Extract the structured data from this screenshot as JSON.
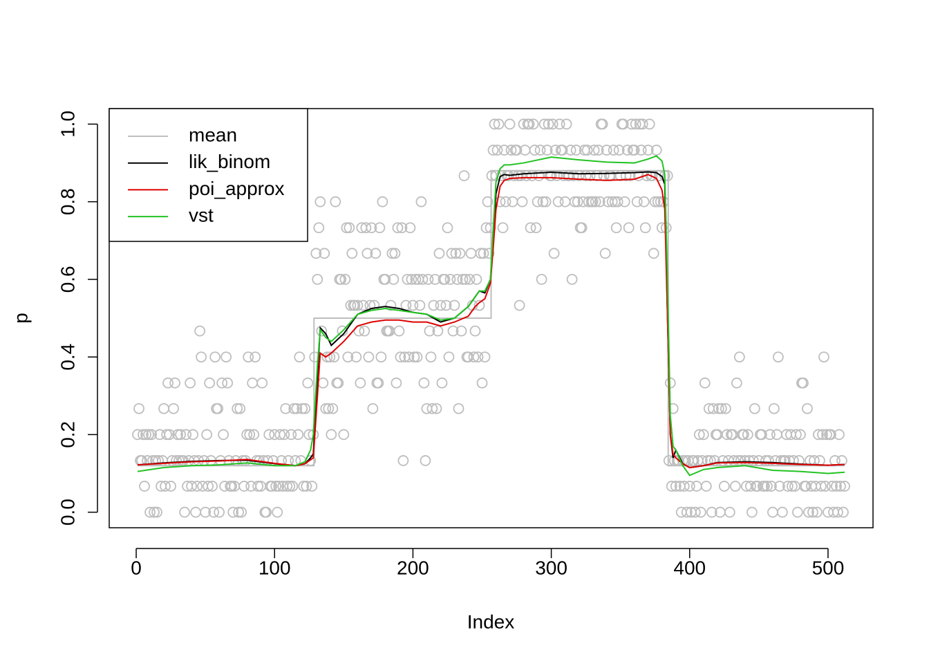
{
  "chart_data": {
    "type": "scatter",
    "x_label": "Index",
    "y_label": "p",
    "xlim": [
      -19.5,
      532.5
    ],
    "ylim": [
      -0.04,
      1.04
    ],
    "xticks": [
      0,
      100,
      200,
      300,
      400,
      500
    ],
    "yticks": [
      {
        "value": 0,
        "label": "0.0"
      },
      {
        "value": 0.2,
        "label": "0.2"
      },
      {
        "value": 0.4,
        "label": "0.4"
      },
      {
        "value": 0.6,
        "label": "0.6"
      },
      {
        "value": 0.8,
        "label": "0.8"
      },
      {
        "value": 1,
        "label": "1.0"
      }
    ],
    "legend": "topleft",
    "point_color": "#bebebe",
    "x": [
      1,
      2,
      3,
      4,
      5,
      6,
      7,
      8,
      9,
      10,
      11,
      12,
      13,
      14,
      15,
      16,
      17,
      18,
      19,
      20,
      21,
      22,
      23,
      24,
      25,
      26,
      27,
      28,
      29,
      30,
      31,
      32,
      33,
      34,
      35,
      36,
      37,
      38,
      39,
      40,
      41,
      42,
      43,
      44,
      45,
      46,
      47,
      48,
      49,
      50,
      51,
      52,
      53,
      54,
      55,
      56,
      57,
      58,
      59,
      60,
      61,
      62,
      63,
      64,
      65,
      66,
      67,
      68,
      69,
      70,
      71,
      72,
      73,
      74,
      75,
      76,
      77,
      78,
      79,
      80,
      81,
      82,
      83,
      84,
      85,
      86,
      87,
      88,
      89,
      90,
      91,
      92,
      93,
      94,
      95,
      96,
      97,
      98,
      99,
      100,
      101,
      102,
      103,
      104,
      105,
      106,
      107,
      108,
      109,
      110,
      111,
      112,
      113,
      114,
      115,
      116,
      117,
      118,
      119,
      120,
      121,
      122,
      123,
      124,
      125,
      126,
      127,
      128,
      129,
      130,
      131,
      132,
      133,
      134,
      135,
      136,
      137,
      138,
      139,
      140,
      141,
      142,
      143,
      144,
      145,
      146,
      147,
      148,
      149,
      150,
      151,
      152,
      153,
      154,
      155,
      156,
      157,
      158,
      159,
      160,
      161,
      162,
      163,
      164,
      165,
      166,
      167,
      168,
      169,
      170,
      171,
      172,
      173,
      174,
      175,
      176,
      177,
      178,
      179,
      180,
      181,
      182,
      183,
      184,
      185,
      186,
      187,
      188,
      189,
      190,
      191,
      192,
      193,
      194,
      195,
      196,
      197,
      198,
      199,
      200,
      201,
      202,
      203,
      204,
      205,
      206,
      207,
      208,
      209,
      210,
      211,
      212,
      213,
      214,
      215,
      216,
      217,
      218,
      219,
      220,
      221,
      222,
      223,
      224,
      225,
      226,
      227,
      228,
      229,
      230,
      231,
      232,
      233,
      234,
      235,
      236,
      237,
      238,
      239,
      240,
      241,
      242,
      243,
      244,
      245,
      246,
      247,
      248,
      249,
      250,
      251,
      252,
      253,
      254,
      255,
      256,
      257,
      258,
      259,
      260,
      261,
      262,
      263,
      264,
      265,
      266,
      267,
      268,
      269,
      270,
      271,
      272,
      273,
      274,
      275,
      276,
      277,
      278,
      279,
      280,
      281,
      282,
      283,
      284,
      285,
      286,
      287,
      288,
      289,
      290,
      291,
      292,
      293,
      294,
      295,
      296,
      297,
      298,
      299,
      300,
      301,
      302,
      303,
      304,
      305,
      306,
      307,
      308,
      309,
      310,
      311,
      312,
      313,
      314,
      315,
      316,
      317,
      318,
      319,
      320,
      321,
      322,
      323,
      324,
      325,
      326,
      327,
      328,
      329,
      330,
      331,
      332,
      333,
      334,
      335,
      336,
      337,
      338,
      339,
      340,
      341,
      342,
      343,
      344,
      345,
      346,
      347,
      348,
      349,
      350,
      351,
      352,
      353,
      354,
      355,
      356,
      357,
      358,
      359,
      360,
      361,
      362,
      363,
      364,
      365,
      366,
      367,
      368,
      369,
      370,
      371,
      372,
      373,
      374,
      375,
      376,
      377,
      378,
      379,
      380,
      381,
      382,
      383,
      384,
      385,
      386,
      387,
      388,
      389,
      390,
      391,
      392,
      393,
      394,
      395,
      396,
      397,
      398,
      399,
      400,
      401,
      402,
      403,
      404,
      405,
      406,
      407,
      408,
      409,
      410,
      411,
      412,
      413,
      414,
      415,
      416,
      417,
      418,
      419,
      420,
      421,
      422,
      423,
      424,
      425,
      426,
      427,
      428,
      429,
      430,
      431,
      432,
      433,
      434,
      435,
      436,
      437,
      438,
      439,
      440,
      441,
      442,
      443,
      444,
      445,
      446,
      447,
      448,
      449,
      450,
      451,
      452,
      453,
      454,
      455,
      456,
      457,
      458,
      459,
      460,
      461,
      462,
      463,
      464,
      465,
      466,
      467,
      468,
      469,
      470,
      471,
      472,
      473,
      474,
      475,
      476,
      477,
      478,
      479,
      480,
      481,
      482,
      483,
      484,
      485,
      486,
      487,
      488,
      489,
      490,
      491,
      492,
      493,
      494,
      495,
      496,
      497,
      498,
      499,
      500,
      501,
      502,
      503,
      504,
      505,
      506,
      507,
      508,
      509,
      510,
      511,
      512
    ],
    "values": [
      0.2,
      0.267,
      0.133,
      0.133,
      0.2,
      0.067,
      0.2,
      0.133,
      0.2,
      0,
      0.2,
      0.133,
      0,
      0.133,
      0,
      0.133,
      0.2,
      0.067,
      0.133,
      0.267,
      0.067,
      0.2,
      0.333,
      0.2,
      0.067,
      0.133,
      0.267,
      0.333,
      0.133,
      0.2,
      0.133,
      0.2,
      0.133,
      0.133,
      0,
      0.2,
      0.067,
      0.133,
      0.333,
      0.067,
      0.2,
      0.133,
      0,
      0.067,
      0.133,
      0.467,
      0.4,
      0.067,
      0.133,
      0,
      0.2,
      0.067,
      0.333,
      0.133,
      0.067,
      0,
      0.4,
      0.267,
      0.267,
      0,
      0.133,
      0.333,
      0.2,
      0.067,
      0.4,
      0.333,
      0.133,
      0.067,
      0.067,
      0,
      0.067,
      0.133,
      0.267,
      0,
      0.267,
      0,
      0.133,
      0.067,
      0.133,
      0.2,
      0.4,
      0.2,
      0.067,
      0.333,
      0.2,
      0.4,
      0.133,
      0.067,
      0.133,
      0.067,
      0.333,
      0.133,
      0,
      0,
      0.133,
      0.2,
      0.067,
      0.067,
      0.133,
      0.2,
      0.067,
      0,
      0.067,
      0.2,
      0.133,
      0.067,
      0.2,
      0.267,
      0.067,
      0.133,
      0.067,
      0.2,
      0.067,
      0.267,
      0.133,
      0.267,
      0.2,
      0.4,
      0.133,
      0.267,
      0.067,
      0.267,
      0.067,
      0.333,
      0.2,
      0.133,
      0.067,
      0.2,
      0.4,
      0.667,
      0.6,
      0.733,
      0.8,
      0.467,
      0.333,
      0.667,
      0.267,
      0.4,
      0.267,
      0.4,
      0.2,
      0.267,
      0.4,
      0.8,
      0.333,
      0.333,
      0.6,
      0.6,
      0.467,
      0.2,
      0.6,
      0.733,
      0.4,
      0.733,
      0.533,
      0.667,
      0.533,
      0.533,
      0.4,
      0.533,
      0.467,
      0.333,
      0.733,
      0.533,
      0.467,
      0.733,
      0.667,
      0.4,
      0.533,
      0.733,
      0.267,
      0.533,
      0.667,
      0.333,
      0.333,
      0.733,
      0.4,
      0.8,
      0.6,
      0.6,
      0.467,
      0.467,
      0.467,
      0.533,
      0.667,
      0.6,
      0.667,
      0.333,
      0.733,
      0.467,
      0.4,
      0.733,
      0.133,
      0.4,
      0.533,
      0.6,
      0.4,
      0.733,
      0.6,
      0.533,
      0.4,
      0.6,
      0.4,
      0.6,
      0.533,
      0.8,
      0.6,
      0.333,
      0.133,
      0.267,
      0.6,
      0.467,
      0.4,
      0.267,
      0.533,
      0.6,
      0.267,
      0.467,
      0.667,
      0.533,
      0.333,
      0.6,
      0.6,
      0.533,
      0.733,
      0.4,
      0.6,
      0.667,
      0.467,
      0.533,
      0.667,
      0.6,
      0.267,
      0.667,
      0.467,
      0.6,
      0.867,
      0.6,
      0.4,
      0.4,
      0.6,
      0.667,
      0.533,
      0.4,
      0.467,
      0.6,
      0.4,
      0.533,
      0.667,
      0.333,
      0.667,
      0.4,
      0.733,
      0.8,
      0.667,
      0.733,
      0.867,
      0.933,
      1,
      0.867,
      0.933,
      1,
      0.8,
      0.867,
      0.733,
      0.933,
      0.8,
      0.867,
      0.867,
      1,
      0.933,
      0.8,
      0.867,
      0.933,
      0.933,
      0.867,
      0.533,
      0.867,
      0.8,
      1,
      0.933,
      0.867,
      1,
      1,
      0.733,
      0.867,
      1,
      0.933,
      0.733,
      0.8,
      0.867,
      0.933,
      0.6,
      0.8,
      1,
      0.8,
      0.933,
      1,
      0.867,
      0.867,
      1,
      0.667,
      0.933,
      0.867,
      0.8,
      1,
      0.933,
      0.933,
      0.867,
      0.8,
      1,
      0.867,
      0.867,
      0.933,
      0.6,
      0.867,
      0.8,
      0.933,
      0.8,
      0.867,
      0.733,
      0.733,
      0.8,
      0.933,
      0.867,
      0.933,
      0.8,
      0.867,
      0.8,
      0.8,
      0.933,
      0.8,
      0.867,
      0.933,
      0.8,
      1,
      1,
      0.867,
      0.667,
      0.933,
      0.8,
      0.867,
      0.867,
      0.8,
      0.933,
      0.8,
      0.733,
      0.8,
      0.933,
      0.867,
      1,
      1,
      0.8,
      0.867,
      0.933,
      0.733,
      0.867,
      1,
      0.933,
      0.933,
      1,
      0.8,
      0.867,
      1,
      0.933,
      1,
      0.8,
      0.733,
      0.867,
      0.933,
      1,
      0.867,
      0.867,
      0.667,
      0.8,
      0.933,
      0.8,
      0.867,
      0.8,
      0.733,
      0.8,
      0.867,
      0.733,
      0.867,
      0.133,
      0.333,
      0.067,
      0.267,
      0.133,
      0.067,
      0.133,
      0.133,
      0.067,
      0,
      0.133,
      0.067,
      0.133,
      0,
      0.133,
      0.067,
      0,
      0.133,
      0.133,
      0,
      0.067,
      0.133,
      0.2,
      0,
      0.133,
      0.2,
      0.333,
      0.067,
      0.133,
      0.267,
      0.133,
      0,
      0.267,
      0.133,
      0.2,
      0.2,
      0.267,
      0,
      0.267,
      0.133,
      0.067,
      0.267,
      0.2,
      0.133,
      0,
      0.2,
      0.2,
      0.133,
      0.067,
      0.333,
      0.133,
      0.4,
      0.133,
      0.2,
      0.2,
      0.133,
      0.067,
      0.2,
      0.133,
      0.067,
      0,
      0.133,
      0.267,
      0.067,
      0.067,
      0.133,
      0.2,
      0.2,
      0.067,
      0.067,
      0.133,
      0.067,
      0.133,
      0.2,
      0.067,
      0,
      0.267,
      0.133,
      0.2,
      0.4,
      0.067,
      0.133,
      0,
      0.133,
      0.133,
      0.2,
      0.067,
      0.133,
      0.2,
      0.067,
      0.133,
      0.067,
      0.2,
      0,
      0.133,
      0.2,
      0.333,
      0.333,
      0.067,
      0.067,
      0.267,
      0,
      0.133,
      0.067,
      0,
      0.133,
      0.067,
      0,
      0.2,
      0.133,
      0.067,
      0.2,
      0.4,
      0.067,
      0.2,
      0,
      0.2,
      0.2,
      0.067,
      0,
      0.133,
      0.067,
      0,
      0.2,
      0.067,
      0.133,
      0,
      0.067
    ],
    "series": [
      {
        "name": "mean",
        "color": "#bebebe",
        "x": [
          1,
          128.5,
          128.5,
          256.5,
          256.5,
          384.5,
          384.5,
          512
        ],
        "values": [
          0.12,
          0.12,
          0.5,
          0.5,
          0.88,
          0.88,
          0.12,
          0.12
        ]
      },
      {
        "name": "lik_binom",
        "color": "#000000",
        "x": [
          1,
          20,
          40,
          60,
          80,
          100,
          115,
          122,
          126,
          128,
          131,
          133,
          137,
          141,
          150,
          160,
          170,
          180,
          190,
          200,
          210,
          220,
          230,
          240,
          245,
          248,
          252,
          256,
          258,
          260,
          263,
          266,
          270,
          280,
          300,
          320,
          340,
          360,
          370,
          376,
          380,
          382,
          384,
          386,
          388,
          390,
          395,
          400,
          410,
          420,
          440,
          460,
          480,
          500,
          512
        ],
        "values": [
          0.122,
          0.127,
          0.131,
          0.133,
          0.134,
          0.125,
          0.12,
          0.125,
          0.14,
          0.15,
          0.35,
          0.475,
          0.46,
          0.43,
          0.46,
          0.51,
          0.525,
          0.53,
          0.525,
          0.515,
          0.51,
          0.49,
          0.5,
          0.53,
          0.555,
          0.57,
          0.565,
          0.6,
          0.7,
          0.82,
          0.865,
          0.87,
          0.868,
          0.872,
          0.876,
          0.872,
          0.873,
          0.875,
          0.877,
          0.875,
          0.865,
          0.845,
          0.5,
          0.2,
          0.14,
          0.16,
          0.125,
          0.115,
          0.12,
          0.128,
          0.13,
          0.128,
          0.124,
          0.121,
          0.123
        ]
      },
      {
        "name": "poi_approx",
        "color": "#df0000",
        "x": [
          1,
          20,
          40,
          60,
          80,
          100,
          115,
          122,
          126,
          128,
          131,
          133,
          137,
          141,
          150,
          160,
          170,
          180,
          190,
          200,
          210,
          220,
          230,
          240,
          245,
          248,
          252,
          256,
          258,
          260,
          263,
          266,
          270,
          280,
          300,
          320,
          340,
          360,
          370,
          376,
          380,
          382,
          384,
          386,
          388,
          390,
          395,
          400,
          410,
          420,
          440,
          460,
          480,
          500,
          512
        ],
        "values": [
          0.122,
          0.126,
          0.13,
          0.132,
          0.136,
          0.126,
          0.12,
          0.125,
          0.135,
          0.14,
          0.3,
          0.41,
          0.4,
          0.41,
          0.44,
          0.48,
          0.49,
          0.495,
          0.495,
          0.49,
          0.49,
          0.48,
          0.49,
          0.505,
          0.53,
          0.54,
          0.55,
          0.59,
          0.68,
          0.78,
          0.84,
          0.855,
          0.86,
          0.862,
          0.862,
          0.858,
          0.855,
          0.858,
          0.87,
          0.86,
          0.83,
          0.78,
          0.5,
          0.2,
          0.15,
          0.14,
          0.125,
          0.115,
          0.12,
          0.127,
          0.128,
          0.126,
          0.123,
          0.121,
          0.123
        ]
      },
      {
        "name": "vst",
        "color": "#22c322",
        "x": [
          1,
          20,
          40,
          60,
          80,
          100,
          115,
          122,
          126,
          128,
          131,
          133,
          137,
          141,
          150,
          160,
          170,
          180,
          190,
          200,
          210,
          220,
          230,
          240,
          245,
          248,
          252,
          256,
          258,
          260,
          263,
          266,
          270,
          280,
          300,
          320,
          340,
          360,
          370,
          376,
          380,
          382,
          384,
          386,
          388,
          390,
          395,
          400,
          410,
          420,
          440,
          460,
          480,
          500,
          512
        ],
        "values": [
          0.105,
          0.115,
          0.12,
          0.122,
          0.127,
          0.12,
          0.12,
          0.13,
          0.16,
          0.2,
          0.38,
          0.47,
          0.45,
          0.44,
          0.47,
          0.51,
          0.52,
          0.525,
          0.52,
          0.515,
          0.51,
          0.495,
          0.5,
          0.53,
          0.555,
          0.57,
          0.57,
          0.6,
          0.73,
          0.85,
          0.885,
          0.895,
          0.895,
          0.9,
          0.915,
          0.908,
          0.902,
          0.9,
          0.91,
          0.918,
          0.905,
          0.87,
          0.6,
          0.25,
          0.17,
          0.16,
          0.12,
          0.095,
          0.11,
          0.115,
          0.12,
          0.108,
          0.105,
          0.1,
          0.103
        ]
      }
    ]
  }
}
